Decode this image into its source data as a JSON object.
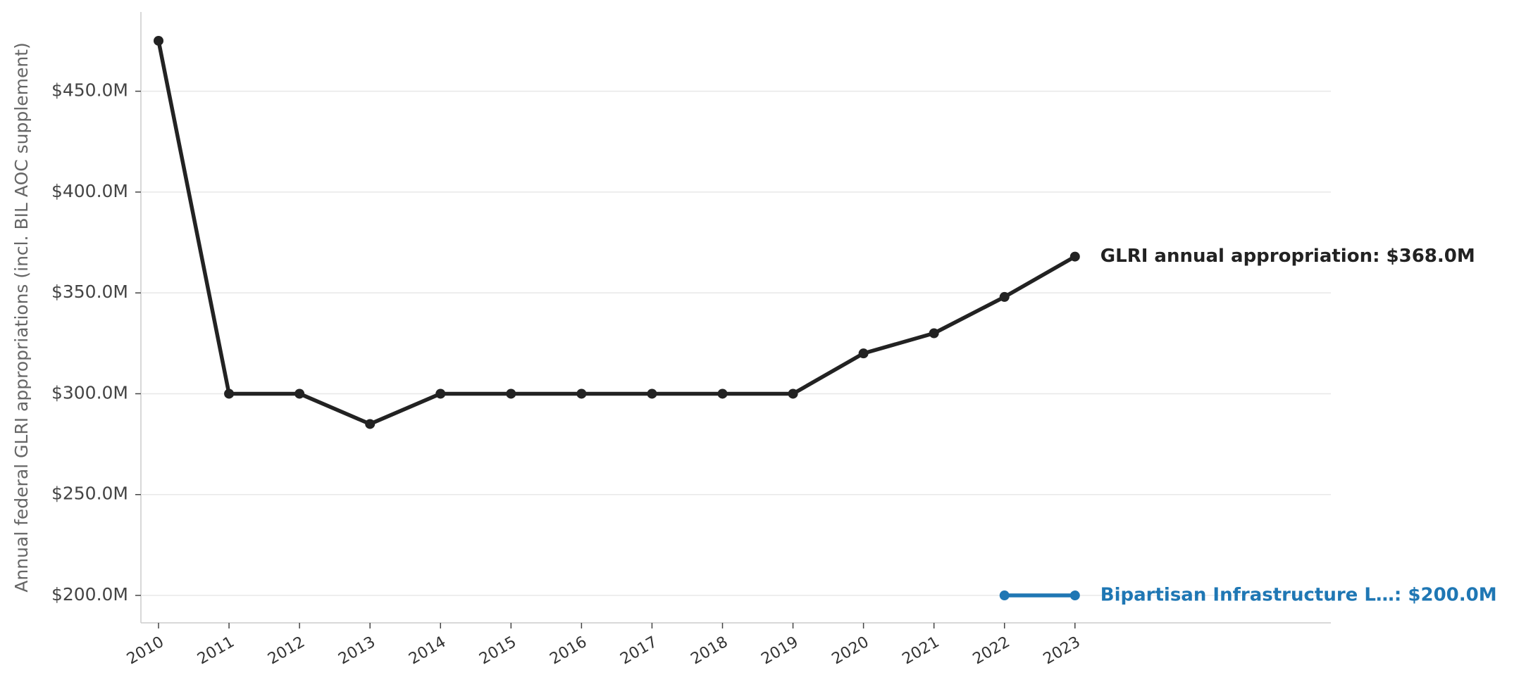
{
  "chart_data": {
    "type": "line",
    "y_label": "Annual federal GLRI appropriations (incl. BIL AOC supplement)",
    "xlim": [
      2009.75,
      2026.63
    ],
    "xticks": [
      2010,
      2011,
      2012,
      2013,
      2014,
      2015,
      2016,
      2017,
      2018,
      2019,
      2020,
      2021,
      2022,
      2023
    ],
    "ylim": [
      186.4,
      489.3
    ],
    "yticks": [
      {
        "value": 200,
        "label": "$200.0M"
      },
      {
        "value": 250,
        "label": "$250.0M"
      },
      {
        "value": 300,
        "label": "$300.0M"
      },
      {
        "value": 350,
        "label": "$350.0M"
      },
      {
        "value": 400,
        "label": "$400.0M"
      },
      {
        "value": 450,
        "label": "$450.0M"
      }
    ],
    "grid": true,
    "series": [
      {
        "color": "#222222",
        "x": [
          2010,
          2011,
          2012,
          2013,
          2014,
          2015,
          2016,
          2017,
          2018,
          2019,
          2020,
          2021,
          2022,
          2023
        ],
        "values": [
          475,
          300,
          300,
          285,
          300,
          300,
          300,
          300,
          300,
          300,
          320,
          330,
          348,
          368
        ],
        "end_label": "GLRI annual appropriation: $368.0M"
      },
      {
        "color": "#1f77b4",
        "x": [
          2022,
          2023
        ],
        "values": [
          200,
          200
        ],
        "end_label": "Bipartisan Infrastructure L…: $200.0M"
      }
    ]
  }
}
